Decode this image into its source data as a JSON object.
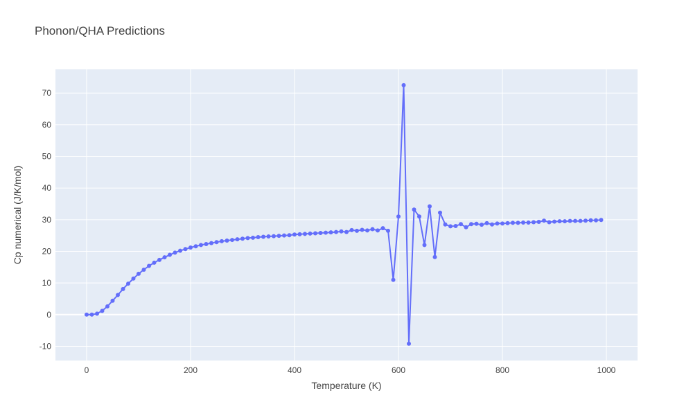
{
  "chart_data": {
    "type": "line",
    "title": "Phonon/QHA Predictions",
    "xlabel": "Temperature (K)",
    "ylabel": "Cp numerical (J/K/mol)",
    "xlim": [
      -60,
      1060
    ],
    "ylim": [
      -14.5,
      77.5
    ],
    "xticks": [
      0,
      200,
      400,
      600,
      800,
      1000
    ],
    "yticks": [
      -10,
      0,
      10,
      20,
      30,
      40,
      50,
      60,
      70
    ],
    "grid": true,
    "legend": "none",
    "colors": {
      "series": "#636efa",
      "plot_bg": "#e5ecf6",
      "grid": "#ffffff"
    },
    "series": [
      {
        "x": [
          0,
          10,
          20,
          30,
          40,
          50,
          60,
          70,
          80,
          90,
          100,
          110,
          120,
          130,
          140,
          150,
          160,
          170,
          180,
          190,
          200,
          210,
          220,
          230,
          240,
          250,
          260,
          270,
          280,
          290,
          300,
          310,
          320,
          330,
          340,
          350,
          360,
          370,
          380,
          390,
          400,
          410,
          420,
          430,
          440,
          450,
          460,
          470,
          480,
          490,
          500,
          510,
          520,
          530,
          540,
          550,
          560,
          570,
          580,
          590,
          600,
          610,
          620,
          630,
          640,
          650,
          660,
          670,
          680,
          690,
          700,
          710,
          720,
          730,
          740,
          750,
          760,
          770,
          780,
          790,
          800,
          810,
          820,
          830,
          840,
          850,
          860,
          870,
          880,
          890,
          900,
          910,
          920,
          930,
          940,
          950,
          960,
          970,
          980,
          990
        ],
        "y": [
          0,
          0,
          0.3,
          1.2,
          2.6,
          4.4,
          6.2,
          8.1,
          9.8,
          11.4,
          12.9,
          14.2,
          15.4,
          16.4,
          17.3,
          18.1,
          18.9,
          19.6,
          20.2,
          20.7,
          21.2,
          21.6,
          22,
          22.3,
          22.6,
          22.9,
          23.2,
          23.4,
          23.6,
          23.8,
          24,
          24.2,
          24.3,
          24.5,
          24.6,
          24.7,
          24.8,
          24.9,
          25,
          25.1,
          25.3,
          25.4,
          25.5,
          25.6,
          25.7,
          25.8,
          25.9,
          26,
          26.1,
          26.3,
          26.1,
          26.7,
          26.5,
          26.8,
          26.6,
          27,
          26.6,
          27.3,
          26.5,
          11,
          31,
          72.5,
          -9.2,
          33.2,
          31,
          22,
          34.2,
          18.2,
          32.2,
          28.5,
          27.9,
          28,
          28.6,
          27.6,
          28.6,
          28.7,
          28.4,
          28.9,
          28.5,
          28.8,
          28.8,
          28.9,
          29,
          29,
          29.1,
          29.1,
          29.2,
          29.3,
          29.7,
          29.2,
          29.4,
          29.5,
          29.5,
          29.6,
          29.6,
          29.6,
          29.7,
          29.8,
          29.8,
          29.9
        ]
      }
    ]
  }
}
